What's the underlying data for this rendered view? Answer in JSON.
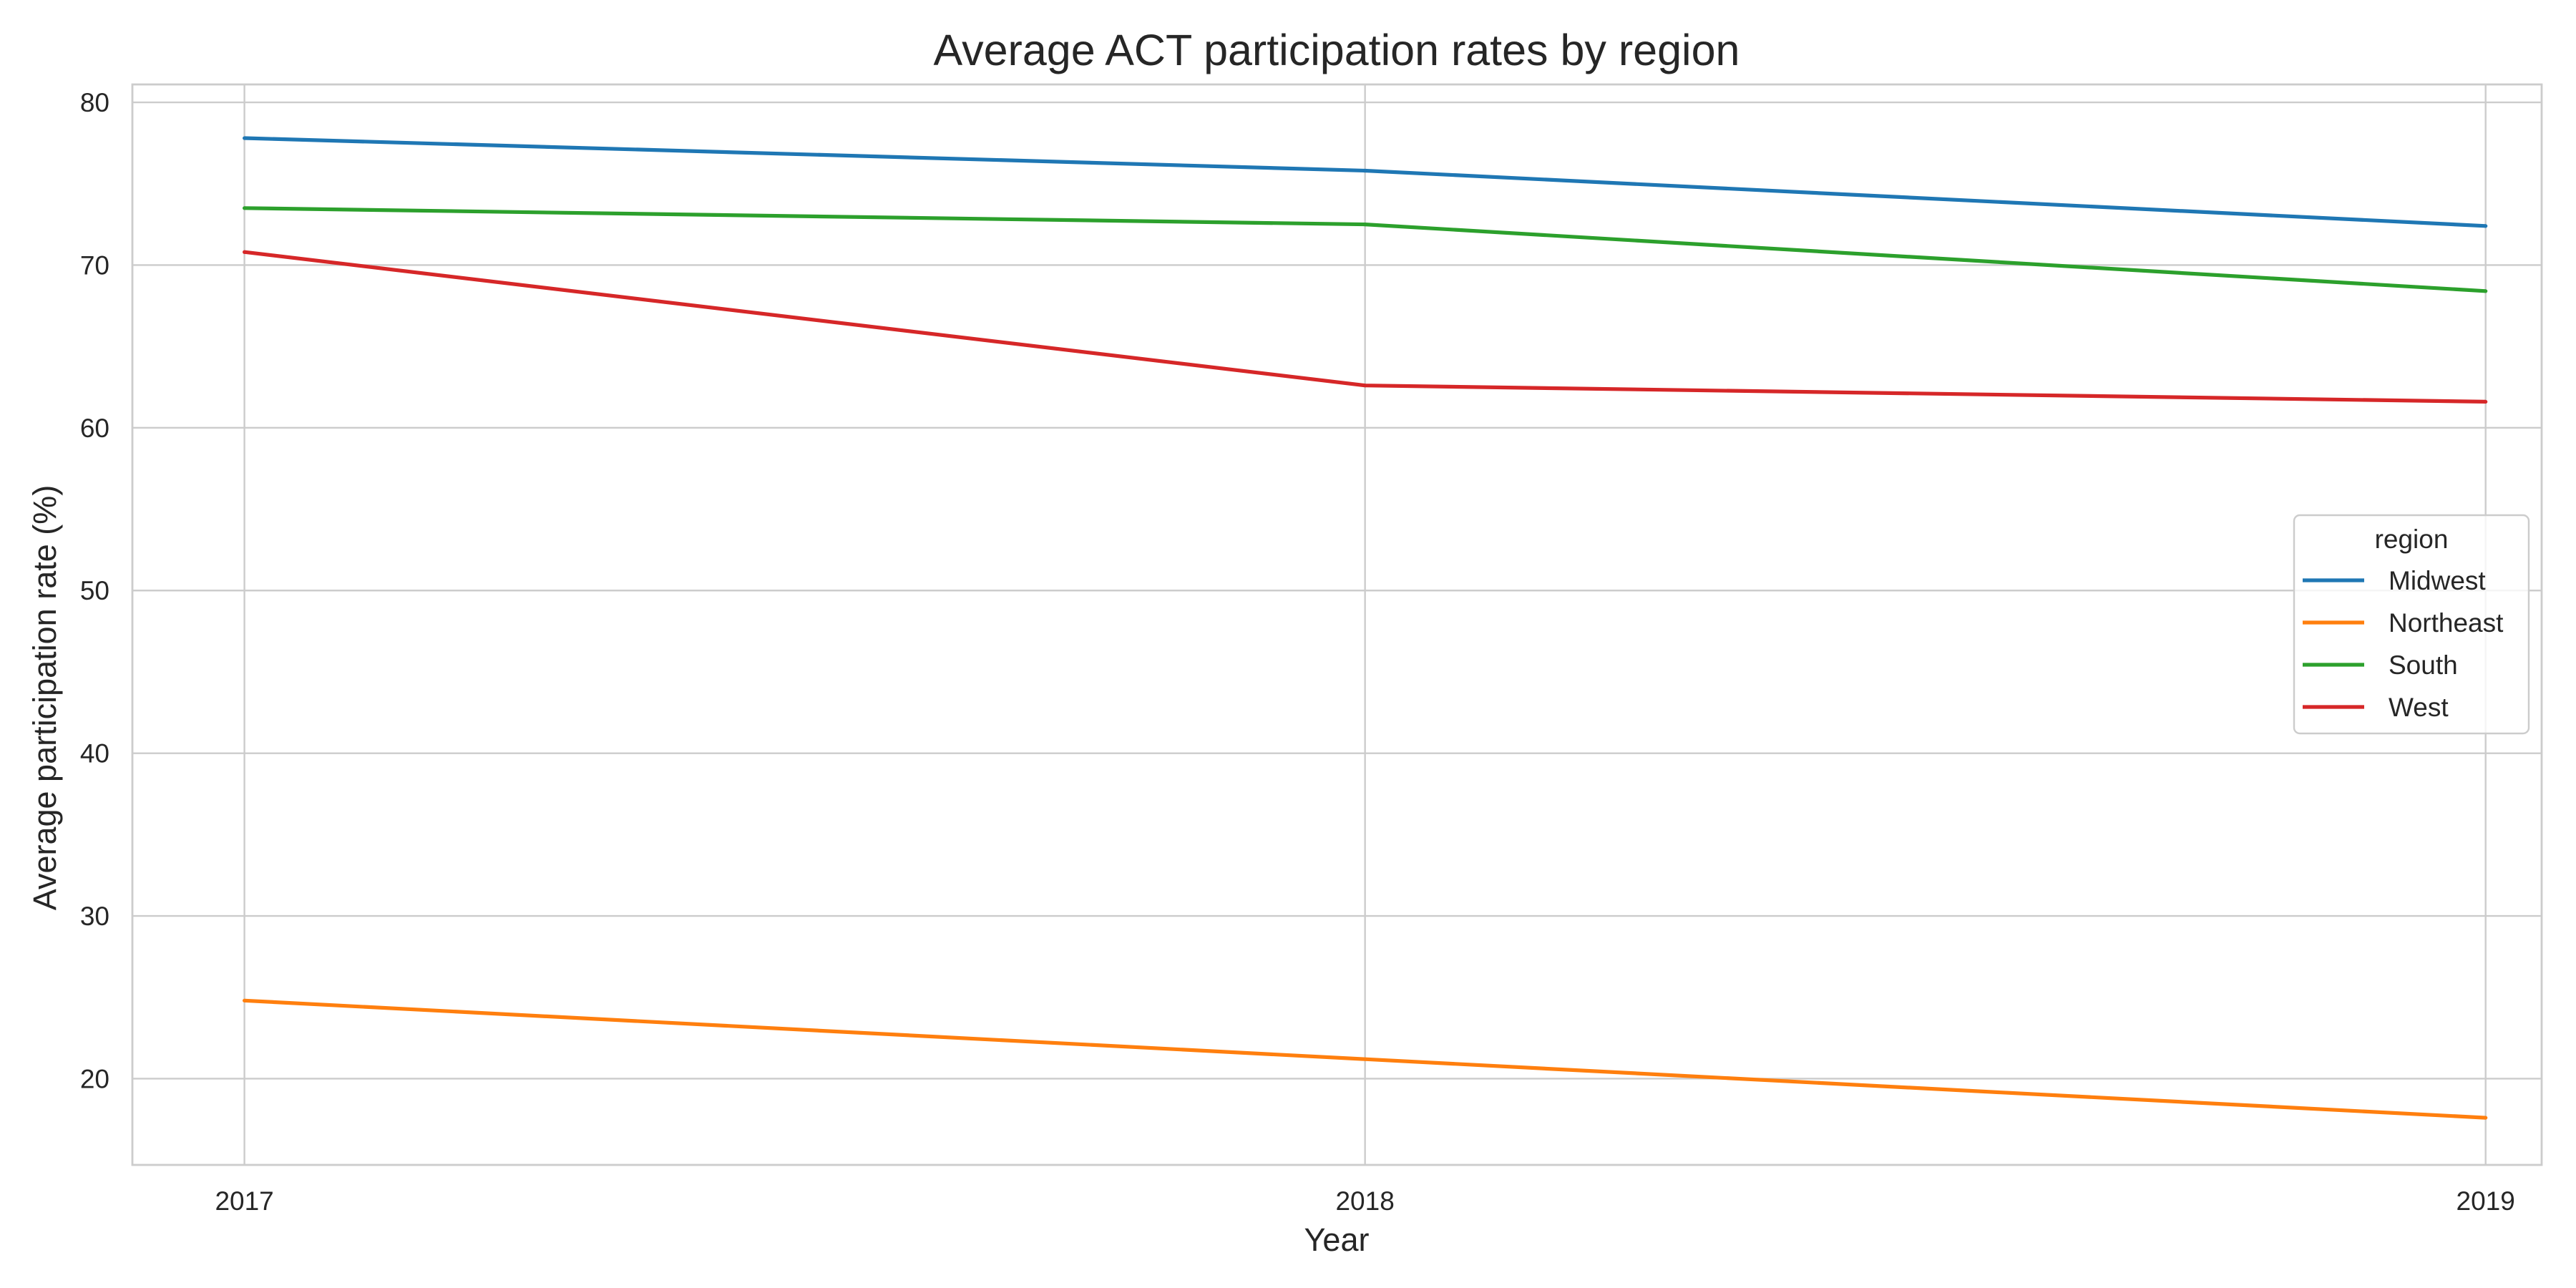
{
  "chart_data": {
    "type": "line",
    "title": "Average ACT participation rates by region",
    "xlabel": "Year",
    "ylabel": "Average participation rate (%)",
    "x": [
      2017,
      2018,
      2019
    ],
    "x_tick_labels": [
      "2017",
      "2018",
      "2019"
    ],
    "y_ticks": [
      20,
      30,
      40,
      50,
      60,
      70,
      80
    ],
    "y_tick_labels": [
      "20",
      "30",
      "40",
      "50",
      "60",
      "70",
      "80"
    ],
    "xlim": [
      2016.9,
      2019.05
    ],
    "ylim": [
      14.7,
      81.1
    ],
    "grid": true,
    "legend": {
      "title": "region",
      "placement": "center-right"
    },
    "series": [
      {
        "name": "Midwest",
        "color": "#1f77b4",
        "values": [
          77.8,
          75.8,
          72.4
        ]
      },
      {
        "name": "Northeast",
        "color": "#ff7f0e",
        "values": [
          24.8,
          21.2,
          17.6
        ]
      },
      {
        "name": "South",
        "color": "#2ca02c",
        "values": [
          73.5,
          72.5,
          68.4
        ]
      },
      {
        "name": "West",
        "color": "#d62728",
        "values": [
          70.8,
          62.6,
          61.6
        ]
      }
    ]
  }
}
